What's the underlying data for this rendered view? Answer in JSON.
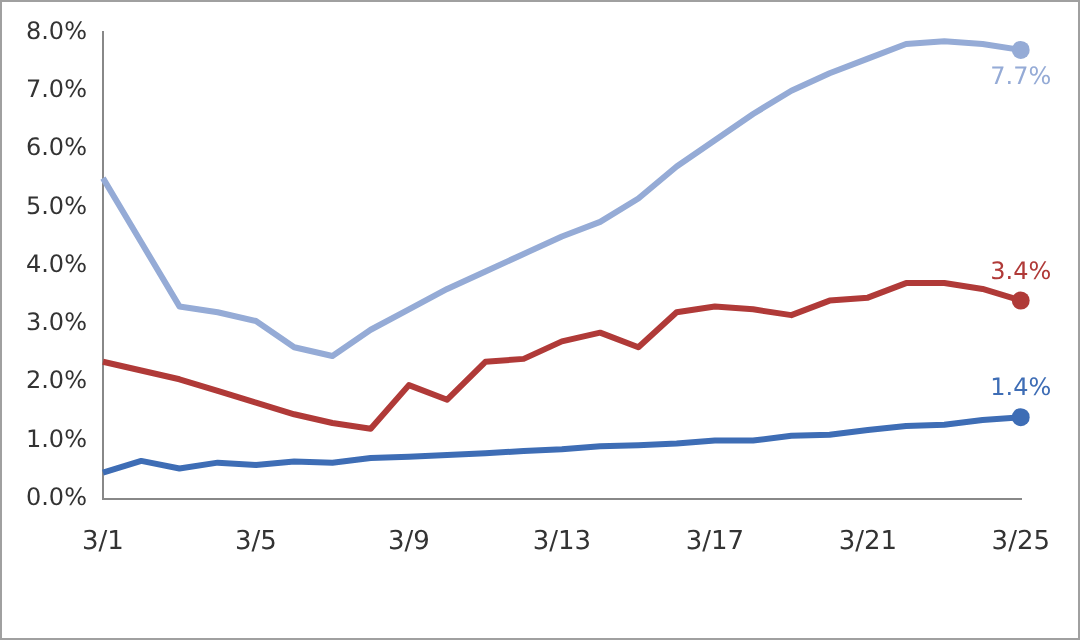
{
  "chart_data": {
    "type": "line",
    "categories": [
      "3/1",
      null,
      null,
      null,
      "3/5",
      null,
      null,
      null,
      "3/9",
      null,
      null,
      null,
      "3/13",
      null,
      null,
      null,
      "3/17",
      null,
      null,
      null,
      "3/21",
      null,
      null,
      null,
      "3/25"
    ],
    "series": [
      {
        "color": "#95abd6",
        "values": [
          5.5,
          4.4,
          3.3,
          3.2,
          3.05,
          2.6,
          2.45,
          2.9,
          3.25,
          3.6,
          3.9,
          4.2,
          4.5,
          4.75,
          5.15,
          5.7,
          6.15,
          6.6,
          7.0,
          7.3,
          7.55,
          7.8,
          7.85,
          7.8,
          7.7
        ],
        "value_labels": [
          null,
          null,
          null,
          null,
          null,
          null,
          null,
          null,
          null,
          null,
          null,
          null,
          null,
          null,
          null,
          null,
          null,
          null,
          null,
          null,
          null,
          null,
          null,
          null,
          "7.7%"
        ]
      },
      {
        "color": "#b03a38",
        "values": [
          2.35,
          2.2,
          2.05,
          1.85,
          1.65,
          1.45,
          1.3,
          1.2,
          1.95,
          1.7,
          2.35,
          2.4,
          2.7,
          2.85,
          2.6,
          3.2,
          3.3,
          3.25,
          3.15,
          3.4,
          3.45,
          3.7,
          3.7,
          3.6,
          3.4
        ],
        "value_labels": [
          null,
          null,
          null,
          null,
          null,
          null,
          null,
          null,
          null,
          null,
          null,
          null,
          null,
          null,
          null,
          null,
          null,
          null,
          null,
          null,
          null,
          null,
          null,
          null,
          "3.4%"
        ]
      },
      {
        "color": "#3e6db5",
        "values": [
          0.45,
          0.65,
          0.52,
          0.62,
          0.58,
          0.64,
          0.62,
          0.7,
          0.72,
          0.75,
          0.78,
          0.82,
          0.85,
          0.9,
          0.92,
          0.95,
          1.0,
          1.0,
          1.08,
          1.1,
          1.18,
          1.25,
          1.27,
          1.35,
          1.4
        ],
        "value_labels": [
          null,
          null,
          null,
          null,
          null,
          null,
          null,
          null,
          null,
          null,
          null,
          null,
          null,
          null,
          null,
          null,
          null,
          null,
          null,
          null,
          null,
          null,
          null,
          null,
          "1.4%"
        ]
      }
    ],
    "ylim": [
      0,
      8
    ],
    "yticks": [
      {
        "value": 0,
        "label": "0.0%"
      },
      {
        "value": 1,
        "label": "1.0%"
      },
      {
        "value": 2,
        "label": "2.0%"
      },
      {
        "value": 3,
        "label": "3.0%"
      },
      {
        "value": 4,
        "label": "4.0%"
      },
      {
        "value": 5,
        "label": "5.0%"
      },
      {
        "value": 6,
        "label": "6.0%"
      },
      {
        "value": 7,
        "label": "7.0%"
      },
      {
        "value": 8,
        "label": "8.0%"
      }
    ],
    "grid": false,
    "legend": false
  }
}
